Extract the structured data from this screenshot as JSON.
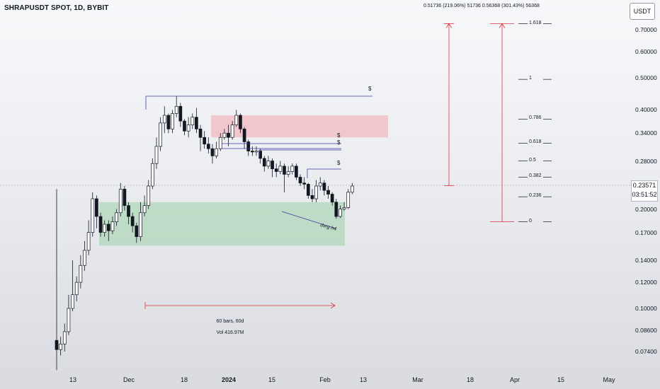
{
  "chart_title": "SHRAPUSDT SPOT, 1D, BYBIT",
  "measure_text": "0.51736 (219.06%) 51736 0.56368 (301.43%) 56368",
  "currency_button": "USDT",
  "current_price": "0.23571",
  "countdown": "03:51:52",
  "price_axis_labels": [
    "0.70000",
    "0.60000",
    "0.50000",
    "0.40000",
    "0.34000",
    "0.28000",
    "0.20000",
    "0.17000",
    "0.14000",
    "0.12000",
    "0.10000",
    "0.08600",
    "0.07400"
  ],
  "time_axis_labels": [
    "13",
    "Dec",
    "18",
    "2024",
    "15",
    "Feb",
    "13",
    "Mar",
    "18",
    "Apr",
    "15",
    "May"
  ],
  "fib_levels": [
    "1.618",
    "1",
    "0.786",
    "0.618",
    "0.5",
    "0.382",
    "0.236",
    "0"
  ],
  "level_marks": [
    "$",
    "$",
    "$",
    "$"
  ],
  "bars_range": "60 bars, 60d",
  "volume": "Vol 416.97M",
  "divergence_note": "dvrg h4",
  "colors": {
    "up": "#ffffff",
    "down": "#131722",
    "line": "#3f3ba6",
    "measure": "#e0313a",
    "demand": "#9ccfa7",
    "supply": "#f3a6ad"
  },
  "chart_data": {
    "type": "candlestick",
    "title": "SHRAPUSDT SPOT, 1D, BYBIT",
    "scale": "log",
    "ylim": [
      0.065,
      0.74
    ],
    "candles": [
      [
        0.08,
        0.075,
        0.23,
        0.065
      ],
      [
        0.075,
        0.078,
        0.082,
        0.072
      ],
      [
        0.078,
        0.085,
        0.09,
        0.074
      ],
      [
        0.085,
        0.1,
        0.11,
        0.083
      ],
      [
        0.1,
        0.11,
        0.14,
        0.098
      ],
      [
        0.11,
        0.12,
        0.125,
        0.105
      ],
      [
        0.12,
        0.135,
        0.145,
        0.115
      ],
      [
        0.135,
        0.15,
        0.16,
        0.13
      ],
      [
        0.15,
        0.17,
        0.185,
        0.145
      ],
      [
        0.17,
        0.215,
        0.225,
        0.165
      ],
      [
        0.215,
        0.19,
        0.22,
        0.175
      ],
      [
        0.19,
        0.17,
        0.195,
        0.165
      ],
      [
        0.17,
        0.18,
        0.185,
        0.165
      ],
      [
        0.18,
        0.172,
        0.185,
        0.16
      ],
      [
        0.172,
        0.183,
        0.19,
        0.168
      ],
      [
        0.183,
        0.195,
        0.2,
        0.178
      ],
      [
        0.195,
        0.23,
        0.24,
        0.19
      ],
      [
        0.23,
        0.205,
        0.235,
        0.198
      ],
      [
        0.205,
        0.19,
        0.21,
        0.18
      ],
      [
        0.19,
        0.178,
        0.195,
        0.17
      ],
      [
        0.178,
        0.165,
        0.182,
        0.158
      ],
      [
        0.165,
        0.195,
        0.21,
        0.16
      ],
      [
        0.195,
        0.205,
        0.22,
        0.19
      ],
      [
        0.205,
        0.235,
        0.245,
        0.2
      ],
      [
        0.235,
        0.275,
        0.285,
        0.23
      ],
      [
        0.275,
        0.31,
        0.33,
        0.265
      ],
      [
        0.31,
        0.365,
        0.38,
        0.3
      ],
      [
        0.365,
        0.385,
        0.41,
        0.34
      ],
      [
        0.385,
        0.35,
        0.39,
        0.34
      ],
      [
        0.35,
        0.39,
        0.4,
        0.34
      ],
      [
        0.39,
        0.41,
        0.44,
        0.38
      ],
      [
        0.41,
        0.37,
        0.42,
        0.355
      ],
      [
        0.37,
        0.345,
        0.375,
        0.335
      ],
      [
        0.345,
        0.36,
        0.38,
        0.33
      ],
      [
        0.36,
        0.38,
        0.39,
        0.35
      ],
      [
        0.38,
        0.35,
        0.405,
        0.34
      ],
      [
        0.35,
        0.33,
        0.36,
        0.3
      ],
      [
        0.33,
        0.315,
        0.345,
        0.305
      ],
      [
        0.315,
        0.305,
        0.33,
        0.295
      ],
      [
        0.305,
        0.29,
        0.315,
        0.275
      ],
      [
        0.29,
        0.305,
        0.32,
        0.285
      ],
      [
        0.305,
        0.33,
        0.34,
        0.3
      ],
      [
        0.33,
        0.34,
        0.35,
        0.325
      ],
      [
        0.34,
        0.33,
        0.36,
        0.31
      ],
      [
        0.33,
        0.36,
        0.37,
        0.325
      ],
      [
        0.36,
        0.385,
        0.4,
        0.355
      ],
      [
        0.385,
        0.35,
        0.39,
        0.34
      ],
      [
        0.35,
        0.32,
        0.355,
        0.305
      ],
      [
        0.32,
        0.3,
        0.325,
        0.29
      ],
      [
        0.3,
        0.298,
        0.31,
        0.29
      ],
      [
        0.298,
        0.3,
        0.31,
        0.29
      ],
      [
        0.3,
        0.285,
        0.305,
        0.275
      ],
      [
        0.285,
        0.27,
        0.29,
        0.26
      ],
      [
        0.27,
        0.28,
        0.29,
        0.265
      ],
      [
        0.28,
        0.265,
        0.285,
        0.25
      ],
      [
        0.265,
        0.26,
        0.275,
        0.25
      ],
      [
        0.26,
        0.27,
        0.28,
        0.255
      ],
      [
        0.27,
        0.255,
        0.275,
        0.225
      ],
      [
        0.255,
        0.26,
        0.27,
        0.25
      ],
      [
        0.26,
        0.27,
        0.275,
        0.255
      ],
      [
        0.27,
        0.25,
        0.275,
        0.245
      ],
      [
        0.25,
        0.24,
        0.255,
        0.235
      ],
      [
        0.24,
        0.238,
        0.25,
        0.23
      ],
      [
        0.238,
        0.22,
        0.24,
        0.215
      ],
      [
        0.22,
        0.215,
        0.23,
        0.21
      ],
      [
        0.215,
        0.235,
        0.245,
        0.21
      ],
      [
        0.235,
        0.24,
        0.25,
        0.228
      ],
      [
        0.24,
        0.228,
        0.245,
        0.22
      ],
      [
        0.228,
        0.222,
        0.235,
        0.215
      ],
      [
        0.222,
        0.21,
        0.225,
        0.205
      ],
      [
        0.21,
        0.19,
        0.215,
        0.187
      ],
      [
        0.19,
        0.2,
        0.205,
        0.188
      ],
      [
        0.2,
        0.202,
        0.21,
        0.198
      ],
      [
        0.202,
        0.225,
        0.23,
        0.2
      ],
      [
        0.225,
        0.235,
        0.24,
        0.222
      ]
    ],
    "demand_zone": [
      0.155,
      0.21
    ],
    "supply_zone": [
      0.33,
      0.385
    ],
    "fib_prices": [
      0.73,
      0.495,
      0.375,
      0.317,
      0.28,
      0.25,
      0.218,
      0.183
    ],
    "measure_low": 0.183,
    "measure_high_1": 0.23571,
    "measure_high_2": 0.73
  }
}
